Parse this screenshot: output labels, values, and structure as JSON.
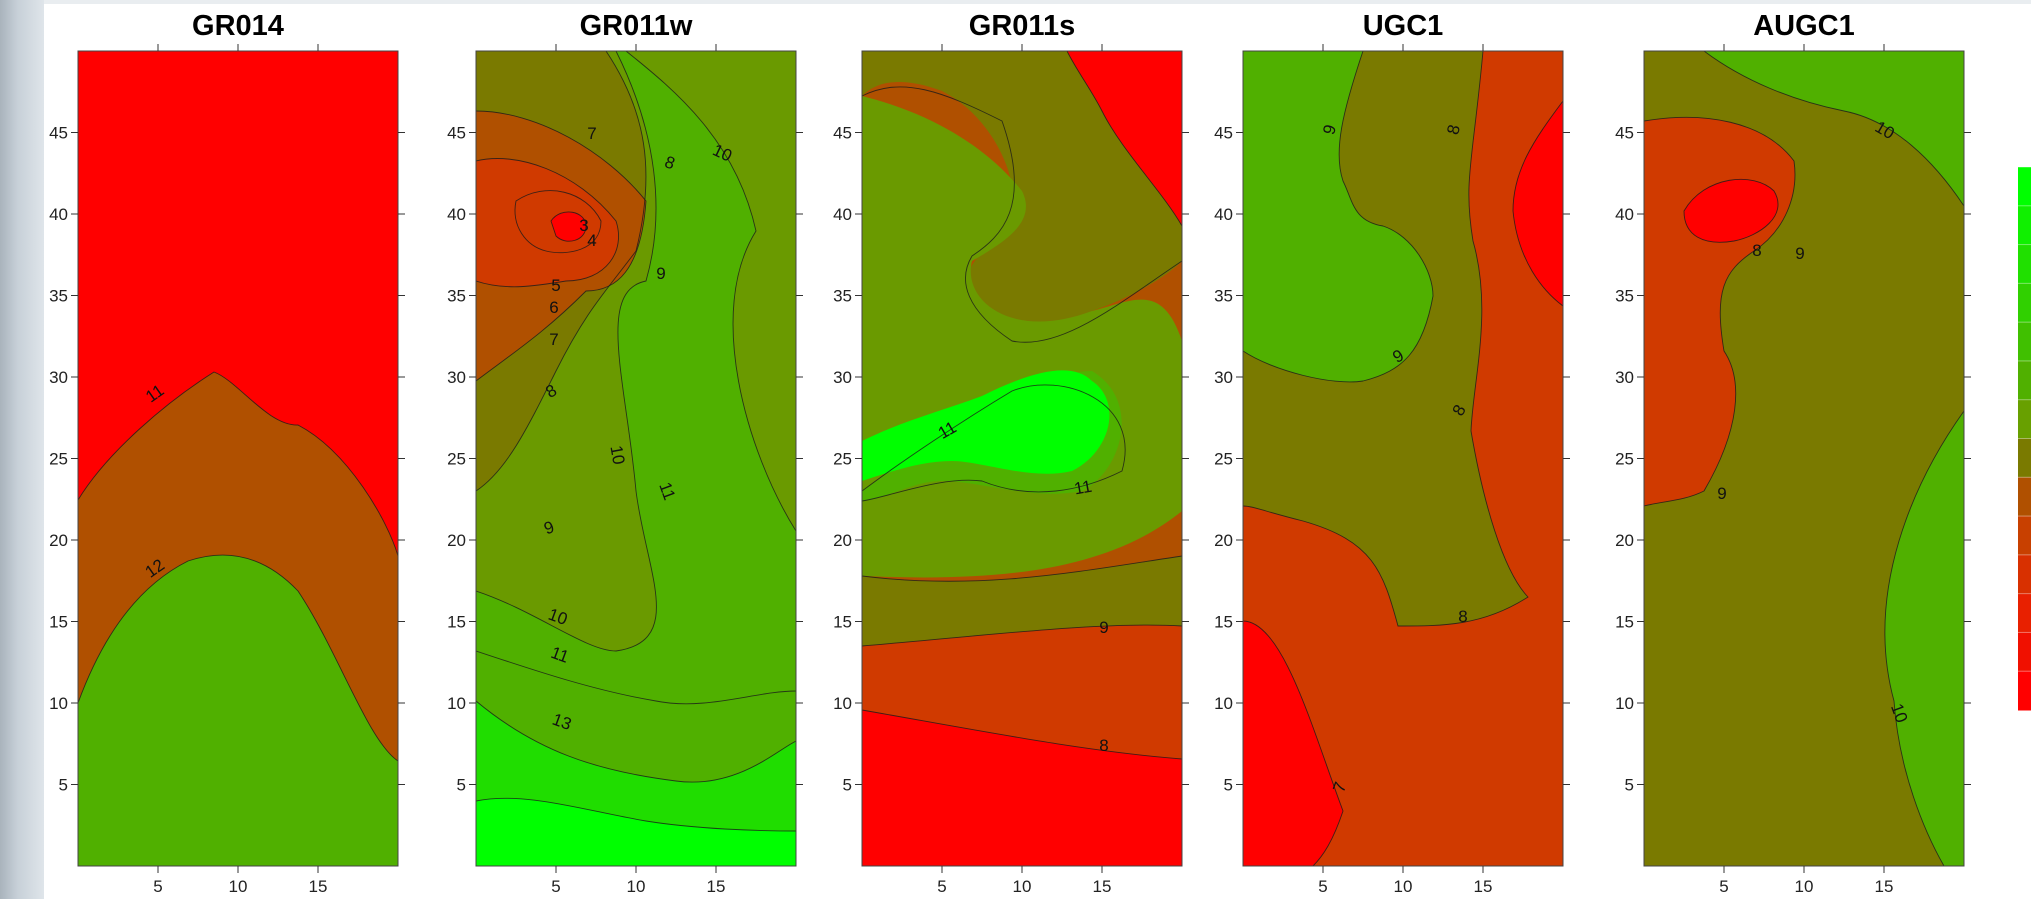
{
  "chart_data": {
    "type": "contour",
    "colors": {
      "red": "#ff0000",
      "orange_red": "#d03a00",
      "brown": "#b05000",
      "olive": "#7a7a00",
      "olive_green": "#6a9a00",
      "green": "#50b000",
      "bright_green": "#20dd00",
      "lime": "#00ff00"
    },
    "legend_colors": [
      "#00ff00",
      "#10f000",
      "#20e000",
      "#30d000",
      "#40c000",
      "#50b000",
      "#68a000",
      "#7a7a00",
      "#b05000",
      "#c84000",
      "#d83000",
      "#e82000",
      "#f01000",
      "#ff0000"
    ],
    "panels": [
      {
        "title": "GR014",
        "xlim": [
          0,
          20
        ],
        "ylim": [
          0,
          50
        ],
        "xticks": [
          "5",
          "10",
          "15"
        ],
        "yticks": [
          "5",
          "10",
          "15",
          "20",
          "25",
          "30",
          "35",
          "40",
          "45"
        ],
        "contour_labels": [
          "11",
          "12"
        ]
      },
      {
        "title": "GR011w",
        "xlim": [
          0,
          20
        ],
        "ylim": [
          0,
          50
        ],
        "xticks": [
          "5",
          "10",
          "15"
        ],
        "yticks": [
          "5",
          "10",
          "15",
          "20",
          "25",
          "30",
          "35",
          "40",
          "45"
        ],
        "contour_labels": [
          "7",
          "8",
          "10",
          "3",
          "4",
          "9",
          "5",
          "6",
          "7",
          "8",
          "10",
          "11",
          "9",
          "10",
          "11",
          "13"
        ]
      },
      {
        "title": "GR011s",
        "xlim": [
          0,
          20
        ],
        "ylim": [
          0,
          50
        ],
        "xticks": [
          "5",
          "10",
          "15"
        ],
        "yticks": [
          "5",
          "10",
          "15",
          "20",
          "25",
          "30",
          "35",
          "40",
          "45"
        ],
        "contour_labels": [
          "11",
          "11",
          "9",
          "8"
        ]
      },
      {
        "title": "UGC1",
        "xlim": [
          0,
          20
        ],
        "ylim": [
          0,
          50
        ],
        "xticks": [
          "5",
          "10",
          "15"
        ],
        "yticks": [
          "5",
          "10",
          "15",
          "20",
          "25",
          "30",
          "35",
          "40",
          "45"
        ],
        "contour_labels": [
          "9",
          "8",
          "9",
          "8",
          "8",
          "7"
        ]
      },
      {
        "title": "AUGC1",
        "xlim": [
          0,
          20
        ],
        "ylim": [
          0,
          50
        ],
        "xticks": [
          "5",
          "10",
          "15"
        ],
        "yticks": [
          "5",
          "10",
          "15",
          "20",
          "25",
          "30",
          "35",
          "40",
          "45"
        ],
        "contour_labels": [
          "10",
          "8",
          "9",
          "9",
          "10"
        ]
      }
    ]
  }
}
